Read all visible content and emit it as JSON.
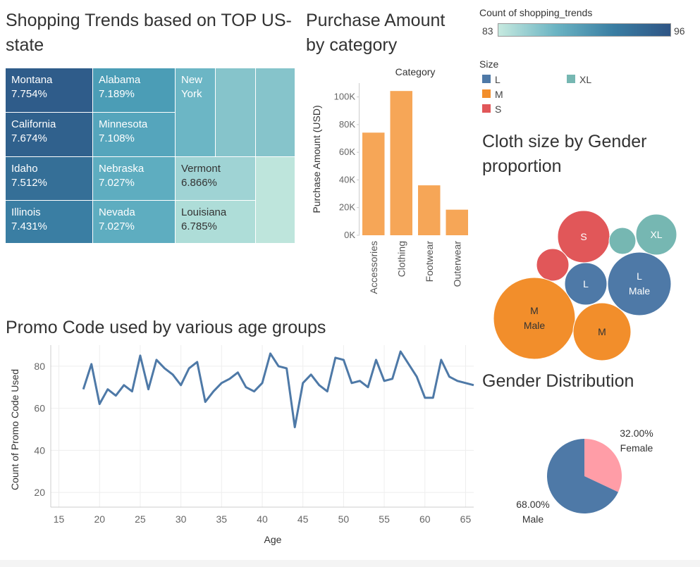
{
  "treemap": {
    "title": "Shopping Trends based on TOP US-state",
    "legend_title": "Count of shopping_trends",
    "legend_min": "83",
    "legend_max": "96",
    "cells": [
      {
        "state": "Montana",
        "pct": "7.754%",
        "color": "#2f5c8a"
      },
      {
        "state": "California",
        "pct": "7.674%",
        "color": "#30618d"
      },
      {
        "state": "Idaho",
        "pct": "7.512%",
        "color": "#356f97"
      },
      {
        "state": "Illinois",
        "pct": "7.431%",
        "color": "#3a7ea3"
      },
      {
        "state": "Alabama",
        "pct": "7.189%",
        "color": "#4b9db6"
      },
      {
        "state": "Minnesota",
        "pct": "7.108%",
        "color": "#55a5bc"
      },
      {
        "state": "Nebraska",
        "pct": "7.027%",
        "color": "#5eadc0"
      },
      {
        "state": "Nevada",
        "pct": "7.027%",
        "color": "#5eadc0"
      },
      {
        "state": "New York",
        "pct": "",
        "color": "#6cb6c5"
      },
      {
        "state": "",
        "pct": "",
        "color": "#86c4cb"
      },
      {
        "state": "",
        "pct": "",
        "color": "#86c4cb"
      },
      {
        "state": "Vermont",
        "pct": "6.866%",
        "color": "#9fd3d4"
      },
      {
        "state": "Louisiana",
        "pct": "6.785%",
        "color": "#aeddd8"
      },
      {
        "state": "",
        "pct": "",
        "color": "#bee5dc"
      }
    ]
  },
  "purchase": {
    "title": "Purchase Amount by category",
    "header": "Category",
    "ylabel": "Purchase Amount (USD)",
    "bar_color": "#f6a657"
  },
  "size_legend": {
    "title": "Size",
    "items": [
      {
        "label": "L",
        "color": "#4e79a7"
      },
      {
        "label": "M",
        "color": "#f28e2b"
      },
      {
        "label": "S",
        "color": "#e15759"
      },
      {
        "label": "XL",
        "color": "#76b7b2"
      }
    ]
  },
  "cloth": {
    "title": "Cloth size by Gender proportion",
    "bubbles": [
      {
        "label": "S",
        "sub": "",
        "value": 37,
        "color": "#e15759"
      },
      {
        "label": "",
        "sub": "",
        "value": 19,
        "color": "#76b7b2"
      },
      {
        "label": "XL",
        "sub": "",
        "value": 29,
        "color": "#76b7b2"
      },
      {
        "label": "",
        "sub": "",
        "value": 23,
        "color": "#e15759"
      },
      {
        "label": "L",
        "sub": "",
        "value": 30,
        "color": "#4e79a7"
      },
      {
        "label": "L",
        "sub": "Male",
        "value": 45,
        "color": "#4e79a7"
      },
      {
        "label": "M",
        "sub": "Male",
        "value": 58,
        "color": "#f28e2b"
      },
      {
        "label": "M",
        "sub": "",
        "value": 41,
        "color": "#f28e2b"
      }
    ]
  },
  "promo": {
    "title": "Promo Code used by various age groups",
    "ylabel": "Count of Promo Code Used",
    "xlabel": "Age",
    "line_color": "#4e79a7"
  },
  "gender": {
    "title": "Gender Distribution",
    "female_pct": "32.00%",
    "female_label": "Female",
    "male_pct": "68.00%",
    "male_label": "Male",
    "female_color": "#ff9da7",
    "male_color": "#4e79a7"
  },
  "chart_data": [
    {
      "type": "heatmap",
      "title": "Shopping Trends based on TOP US-state",
      "legend_title": "Count of shopping_trends",
      "color_range": [
        83,
        96
      ],
      "categories": [
        "Montana",
        "California",
        "Idaho",
        "Illinois",
        "Alabama",
        "Minnesota",
        "Nebraska",
        "Nevada",
        "New York",
        "Vermont",
        "Louisiana"
      ],
      "values": [
        7.754,
        7.674,
        7.512,
        7.431,
        7.189,
        7.108,
        7.027,
        7.027,
        null,
        6.866,
        6.785
      ]
    },
    {
      "type": "bar",
      "title": "Purchase Amount by category",
      "xlabel": "Category",
      "ylabel": "Purchase Amount (USD)",
      "categories": [
        "Accessories",
        "Clothing",
        "Footwear",
        "Outerwear"
      ],
      "values": [
        74200,
        104300,
        36100,
        18500
      ],
      "ylim": [
        0,
        110000
      ],
      "yticks": [
        0,
        20000,
        40000,
        60000,
        80000,
        100000
      ],
      "ytick_labels": [
        "0K",
        "20K",
        "40K",
        "60K",
        "80K",
        "100K"
      ]
    },
    {
      "type": "line",
      "title": "Promo Code used by various age groups",
      "xlabel": "Age",
      "ylabel": "Count of Promo Code Used",
      "x": [
        18,
        19,
        20,
        21,
        22,
        23,
        24,
        25,
        26,
        27,
        28,
        29,
        30,
        31,
        32,
        33,
        34,
        35,
        36,
        37,
        38,
        39,
        40,
        41,
        42,
        43,
        44,
        45,
        46,
        47,
        48,
        49,
        50,
        51,
        52,
        53,
        54,
        55,
        56,
        57,
        58,
        59,
        60,
        61,
        62,
        63,
        64,
        65,
        66
      ],
      "y": [
        69,
        81,
        62,
        69,
        66,
        71,
        68,
        85,
        69,
        83,
        79,
        76,
        71,
        79,
        82,
        63,
        68,
        72,
        74,
        77,
        70,
        68,
        72,
        86,
        80,
        79,
        51,
        72,
        76,
        71,
        68,
        84,
        83,
        72,
        73,
        70,
        83,
        73,
        74,
        87,
        81,
        75,
        65,
        65,
        83,
        75,
        73,
        72,
        71
      ],
      "xlim": [
        14,
        66
      ],
      "ylim": [
        13,
        90
      ],
      "xticks": [
        15,
        20,
        25,
        30,
        35,
        40,
        45,
        50,
        55,
        60,
        65
      ],
      "yticks": [
        20,
        40,
        60,
        80
      ]
    },
    {
      "type": "pie",
      "title": "Gender Distribution",
      "categories": [
        "Female",
        "Male"
      ],
      "values": [
        32.0,
        68.0
      ]
    }
  ]
}
